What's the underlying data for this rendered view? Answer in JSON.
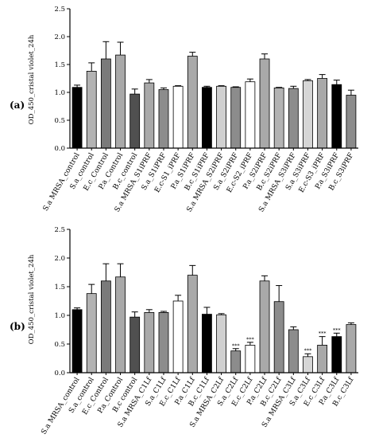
{
  "chart_data": [
    {
      "panel_label": "(a)",
      "type": "bar",
      "ylabel": "OD_450_cristal violet_24h",
      "ylim": [
        0,
        2.5
      ],
      "yticks": [
        "0.0",
        "0.5",
        "1.0",
        "1.5",
        "2.0",
        "2.5"
      ],
      "categories": [
        "S.a MRSA_control",
        "S.a_control",
        "E.c_Control",
        "P.a_Control",
        "B.c_control",
        "S.a MRSA_S1iPRF",
        "S.a_S1iPRF",
        "E.c-S1_iPRF",
        "P.a_S1iPRF",
        "B.c_S1iPRF",
        "S.a MRSA_S2iPRF",
        "S.a_S2iPRF",
        "E.c-S2_iPRF",
        "P.a_S2iPRF",
        "B.c_S2iPRF",
        "S.a MRSA_S3iPRF",
        "S.a_S3iPRF",
        "E.c-S3_iPRF",
        "P.a_S3iPRF",
        "B.c_S3iPRF"
      ],
      "values": [
        1.09,
        1.38,
        1.6,
        1.67,
        0.97,
        1.17,
        1.05,
        1.11,
        1.65,
        1.09,
        1.11,
        1.09,
        1.19,
        1.6,
        1.08,
        1.07,
        1.21,
        1.25,
        1.14,
        0.95
      ],
      "errors": [
        0.04,
        0.15,
        0.31,
        0.23,
        0.09,
        0.06,
        0.03,
        0.01,
        0.07,
        0.02,
        0.01,
        0.01,
        0.05,
        0.09,
        0.01,
        0.04,
        0.02,
        0.07,
        0.08,
        0.09
      ],
      "colors": [
        "#000000",
        "#b3b3b3",
        "#7a7a7a",
        "#a9a9a9",
        "#505050",
        "#a9a9a9",
        "#8c8c8c",
        "#ffffff",
        "#a9a9a9",
        "#000000",
        "#d0d0d0",
        "#8c8c8c",
        "#ffffff",
        "#a9a9a9",
        "#b3b3b3",
        "#8c8c8c",
        "#d6d6d6",
        "#a9a9a9",
        "#000000",
        "#8c8c8c"
      ],
      "significance": [
        "",
        "",
        "",
        "",
        "",
        "",
        "",
        "",
        "",
        "",
        "",
        "",
        "",
        "",
        "",
        "",
        "",
        "",
        "",
        ""
      ]
    },
    {
      "panel_label": "(b)",
      "type": "bar",
      "ylabel": "OD_450_cristal violet_24h",
      "ylim": [
        0,
        2.5
      ],
      "yticks": [
        "0.0",
        "0.5",
        "1.0",
        "1.5",
        "2.0",
        "2.5"
      ],
      "categories": [
        "S.a MRSA_control",
        "S.a_control",
        "E.c_Control",
        "P.a_Control",
        "B.c control",
        "S.a MRSA_C1Lf",
        "S.a_C1Lf",
        "E.c_C1Lf",
        "P.a_C1Lf",
        "B.c_C1Lf",
        "S.a MRSA_C2Lf",
        "S.a_C2Lf",
        "E.c_C2Lf",
        "P.a_C2Lf",
        "B.c_C2Lf",
        "S.a MRSA_C3Lf",
        "S.a_C3Lf",
        "E.c_C3Lf",
        "P.a_C3Lf",
        "B.c_C3Lf"
      ],
      "values": [
        1.1,
        1.38,
        1.6,
        1.67,
        0.97,
        1.05,
        1.05,
        1.25,
        1.7,
        1.02,
        1.01,
        0.38,
        0.48,
        1.6,
        1.24,
        0.75,
        0.28,
        0.48,
        0.63,
        0.84
      ],
      "errors": [
        0.03,
        0.16,
        0.3,
        0.23,
        0.09,
        0.05,
        0.02,
        0.1,
        0.17,
        0.12,
        0.02,
        0.04,
        0.05,
        0.09,
        0.28,
        0.05,
        0.05,
        0.15,
        0.06,
        0.03
      ],
      "colors": [
        "#000000",
        "#b3b3b3",
        "#7a7a7a",
        "#a9a9a9",
        "#505050",
        "#a9a9a9",
        "#8c8c8c",
        "#ffffff",
        "#a9a9a9",
        "#000000",
        "#d0d0d0",
        "#8c8c8c",
        "#ffffff",
        "#a9a9a9",
        "#8c8c8c",
        "#8c8c8c",
        "#d6d6d6",
        "#a9a9a9",
        "#000000",
        "#a9a9a9"
      ],
      "significance": [
        "",
        "",
        "",
        "",
        "",
        "",
        "",
        "",
        "",
        "",
        "",
        "***",
        "***",
        "",
        "",
        "",
        "***",
        "***",
        "***",
        ""
      ]
    }
  ]
}
